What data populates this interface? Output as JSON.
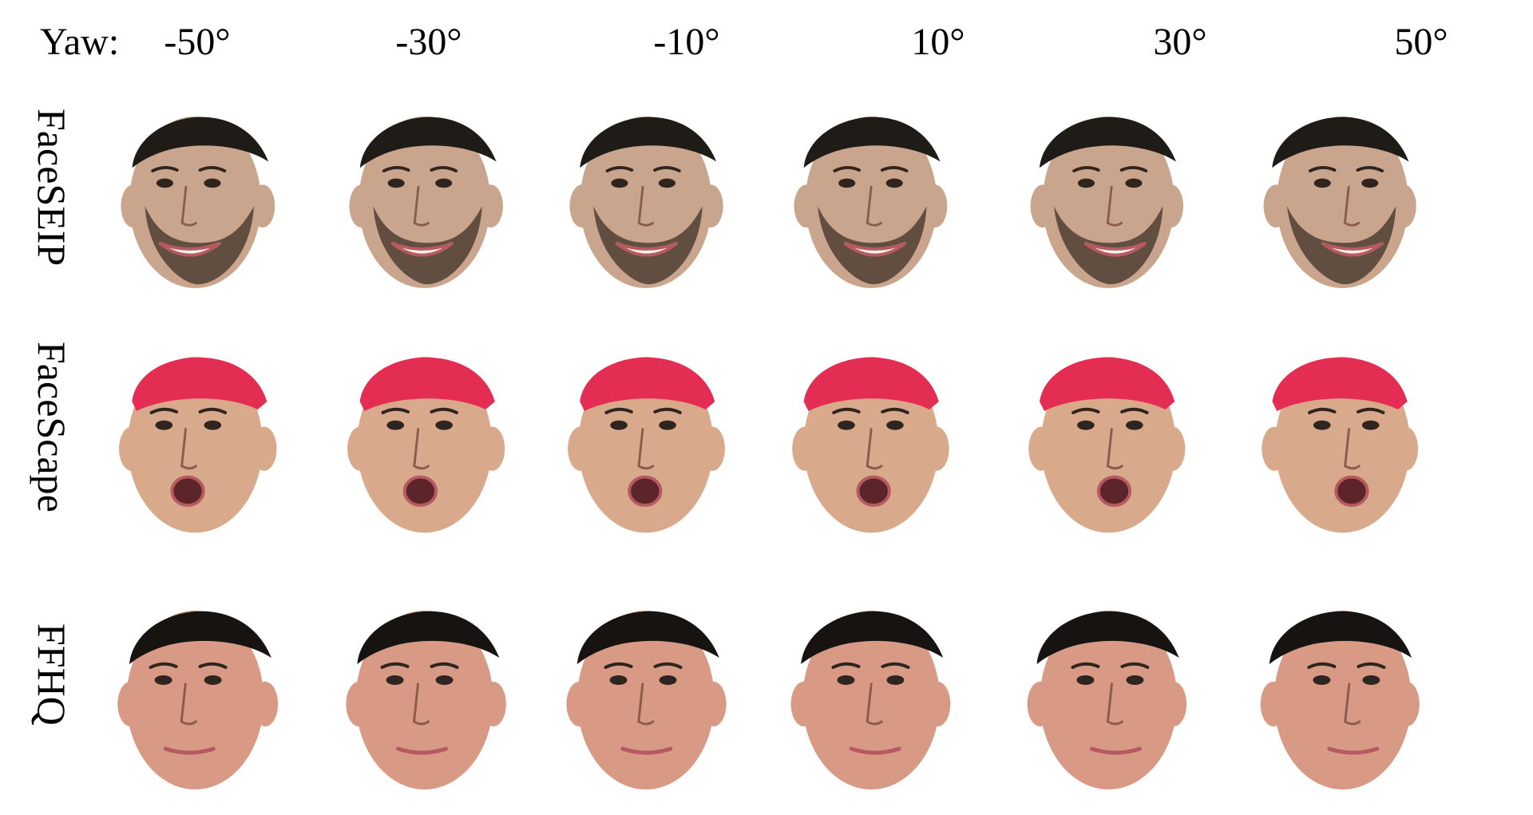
{
  "header": {
    "yaw_label": "Yaw:",
    "angles": [
      "-50°",
      "-30°",
      "-10°",
      "10°",
      "30°",
      "50°"
    ],
    "yaw_values": [
      -50,
      -30,
      -10,
      10,
      30,
      50
    ]
  },
  "rows": [
    {
      "label": "FaceSEIP",
      "subject": "bearded man with short dark hair, smiling",
      "hair_color": "#1f1b17",
      "skin_color": "#c9a58d",
      "beard_color": "#4a3b31",
      "mouth_state": "smile"
    },
    {
      "label": "FaceScape",
      "subject": "young man wearing a pink cap, mouth open",
      "hair_color": "#e32d52",
      "skin_color": "#d8aa8b",
      "beard_color": "",
      "mouth_state": "open"
    },
    {
      "label": "FFHQ",
      "subject": "young man with short dark hair, neutral expression",
      "hair_color": "#161310",
      "skin_color": "#d89a84",
      "beard_color": "",
      "mouth_state": "neutral"
    }
  ],
  "colors": {
    "text": "#000000",
    "background": "#ffffff",
    "eye": "#2f2520",
    "lip": "#b45a60",
    "tooth": "#f6efe9",
    "mouth_dark": "#5b2529"
  }
}
